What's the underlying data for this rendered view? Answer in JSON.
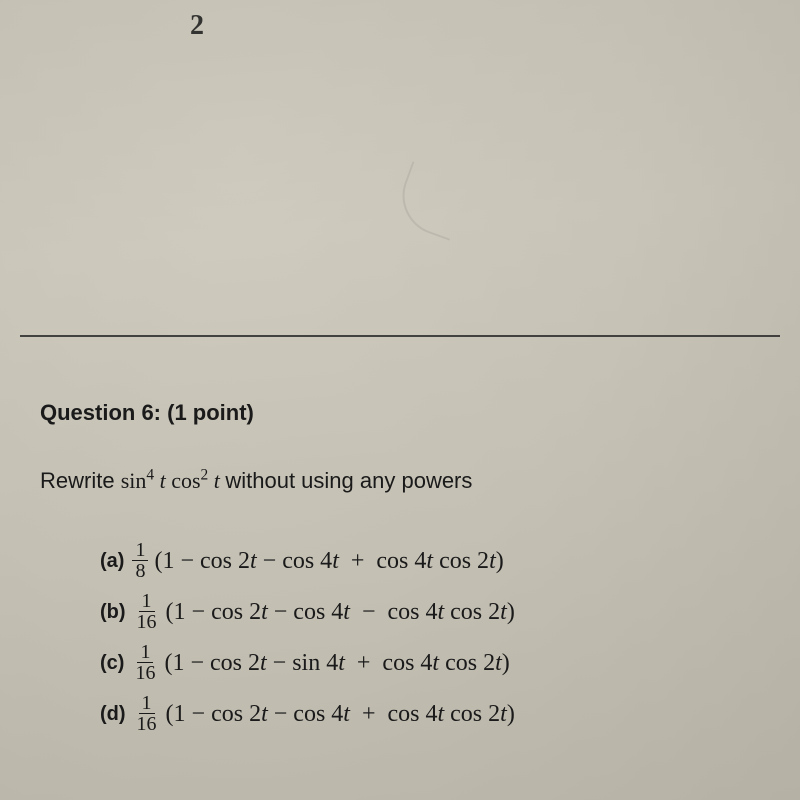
{
  "fragment": {
    "subscript": "2"
  },
  "question": {
    "header": "Question 6: (1 point)",
    "prompt_prefix": "Rewrite ",
    "prompt_expr_sin": "sin",
    "prompt_expr_sin_pow": "4",
    "prompt_expr_t1": " t ",
    "prompt_expr_cos": "cos",
    "prompt_expr_cos_pow": "2",
    "prompt_expr_t2": " t ",
    "prompt_suffix": " without using any powers"
  },
  "options": {
    "a": {
      "label": "(a)",
      "frac_num": "1",
      "frac_den": "8",
      "expr": "(1 − cos 2t − cos 4t  +  cos 4t cos 2t)"
    },
    "b": {
      "label": "(b)",
      "frac_num": "1",
      "frac_den": "16",
      "expr": "(1 − cos 2t − cos 4t  −  cos 4t cos 2t)"
    },
    "c": {
      "label": "(c)",
      "frac_num": "1",
      "frac_den": "16",
      "expr": "(1 − cos 2t − sin 4t  +  cos 4t cos 2t)"
    },
    "d": {
      "label": "(d)",
      "frac_num": "1",
      "frac_den": "16",
      "expr": "(1 − cos 2t − cos 4t  +  cos 4t cos 2t)"
    }
  },
  "style": {
    "text_color": "#1a1a1a",
    "bg_tint": "#c8c4b8",
    "rule_color": "#2a2a2a"
  }
}
